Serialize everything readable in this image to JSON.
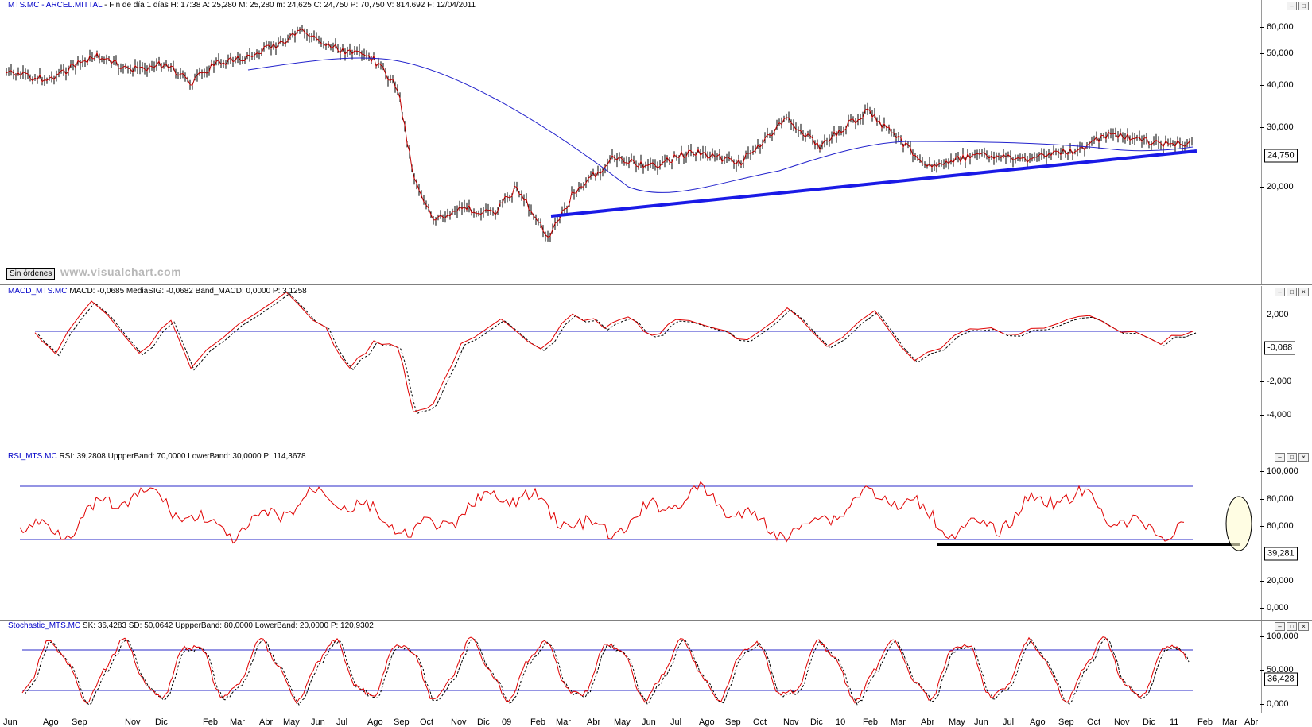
{
  "price": {
    "title_name": "MTS.MC - ARCEL.MITTAL",
    "title_info": "- Fin de día 1 días  H: 17:38  A: 25,280  M: 25,280  m: 24,625  C: 24,750  P: 70,750  V: 814.692  F: 12/04/2011",
    "ticks": [
      "60,000",
      "50,000",
      "40,000",
      "30,000",
      "20,000"
    ],
    "last_value": "24,750",
    "sin_ordenes": "Sin órdenes",
    "watermark": "www.visualchart.com"
  },
  "macd": {
    "title_name": "MACD_MTS.MC",
    "title_info": "MACD: -0,0685  MediaSIG: -0,0682  Band_MACD: 0,0000  P: 3,1258",
    "ticks": [
      "2,000",
      "-2,000",
      "-4,000"
    ],
    "last_value": "-0,068"
  },
  "rsi": {
    "title_name": "RSI_MTS.MC",
    "title_info": "RSI: 39,2808  UppperBand: 70,0000  LowerBand: 30,0000  P: 114,3678",
    "ticks": [
      "100,000",
      "80,000",
      "60,000",
      "20,000",
      "0,000"
    ],
    "last_value": "39,281"
  },
  "stoch": {
    "title_name": "Stochastic_MTS.MC",
    "title_info": "SK: 36,4283  SD: 50,0642  UppperBand: 80,0000  LowerBand: 20,0000  P: 120,9302",
    "ticks": [
      "100,000",
      "50,000",
      "0,000"
    ],
    "last_value": "36,428"
  },
  "x_axis": {
    "labels": [
      "Jun",
      "Ago",
      "Sep",
      "Nov",
      "Dic",
      "Feb",
      "Mar",
      "Abr",
      "May",
      "Jun",
      "Jul",
      "Ago",
      "Sep",
      "Oct",
      "Nov",
      "Dic",
      "09",
      "Feb",
      "Mar",
      "Abr",
      "May",
      "Jun",
      "Jul",
      "Ago",
      "Sep",
      "Oct",
      "Nov",
      "Dic",
      "10",
      "Feb",
      "Mar",
      "Abr",
      "May",
      "Jun",
      "Jul",
      "Ago",
      "Sep",
      "Oct",
      "Nov",
      "Dic",
      "11",
      "Feb",
      "Mar",
      "Abr"
    ]
  },
  "window_buttons": {
    "min": "–",
    "max": "□",
    "close": "×"
  },
  "colors": {
    "price": "#c00000",
    "bar": "#000000",
    "trend": "#1a1ae6",
    "band": "#2828c8",
    "indicator": "#e00000",
    "signal": "#000000"
  }
}
